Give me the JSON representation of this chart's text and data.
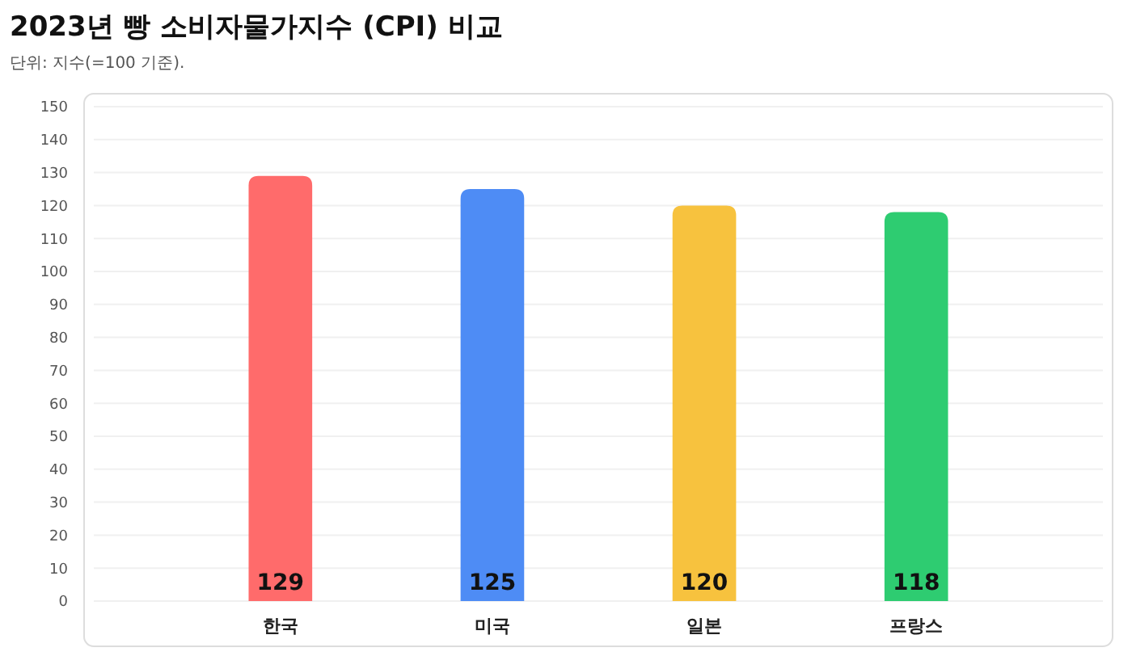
{
  "chart_data": {
    "type": "bar",
    "title": "2023년 빵 소비자물가지수 (CPI) 비교",
    "subtitle": "단위: 지수(=100 기준).",
    "categories": [
      "한국",
      "미국",
      "일본",
      "프랑스"
    ],
    "values": [
      129,
      125,
      120,
      118
    ],
    "colors": [
      "#ff6b6b",
      "#4e8cf5",
      "#f7c23e",
      "#2ecc71"
    ],
    "ylim": [
      0,
      150
    ],
    "yticks": [
      0,
      10,
      20,
      30,
      40,
      50,
      60,
      70,
      80,
      90,
      100,
      110,
      120,
      130,
      140,
      150
    ],
    "grid": "y",
    "data_labels": true
  }
}
